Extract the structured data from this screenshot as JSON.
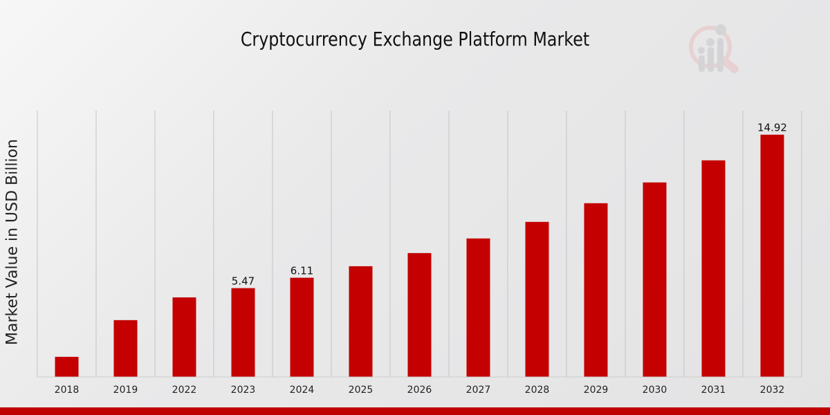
{
  "chart_data": {
    "type": "bar",
    "title": "Cryptocurrency Exchange Platform Market",
    "xlabel": "",
    "ylabel": "Market Value in USD Billion",
    "categories": [
      "2018",
      "2019",
      "2022",
      "2023",
      "2024",
      "2025",
      "2026",
      "2027",
      "2028",
      "2029",
      "2030",
      "2031",
      "2032"
    ],
    "values": [
      1.24,
      3.5,
      4.9,
      5.47,
      6.11,
      6.82,
      7.63,
      8.53,
      9.55,
      10.7,
      11.98,
      13.34,
      14.92
    ],
    "data_labels": {
      "2023": "5.47",
      "2024": "6.11",
      "2032": "14.92"
    },
    "ylim": [
      0,
      16.4
    ],
    "grid": "vertical",
    "bar_color": "#c40000",
    "accent_color": "#c00000"
  }
}
